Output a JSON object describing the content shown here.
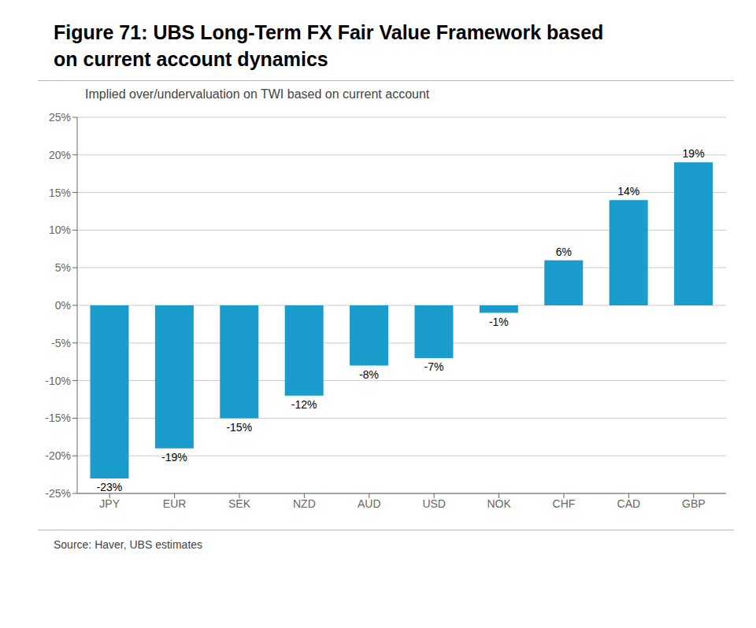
{
  "chart_data": {
    "type": "bar",
    "title": [
      "Figure 71: UBS Long-Term FX Fair Value Framework based",
      "on current account dynamics"
    ],
    "subtitle": "Implied over/undervaluation on TWI based on current account",
    "annotations": [
      "Source: Haver, UBS estimates"
    ],
    "categories": [
      "JPY",
      "EUR",
      "SEK",
      "NZD",
      "AUD",
      "USD",
      "NOK",
      "CHF",
      "CAD",
      "GBP"
    ],
    "values": [
      -23,
      -19,
      -15,
      -12,
      -8,
      -7,
      -1,
      6,
      14,
      19
    ],
    "value_labels": [
      "-23%",
      "-19%",
      "-15%",
      "-12%",
      "-8%",
      "-7%",
      "-1%",
      "6%",
      "14%",
      "19%"
    ],
    "data_labels": true,
    "color": "#1a9dcc",
    "ylim": [
      -25,
      25
    ],
    "yticks": [
      {
        "value": -25,
        "label": "-25%"
      },
      {
        "value": -20,
        "label": "-20%"
      },
      {
        "value": -15,
        "label": "-15%"
      },
      {
        "value": -10,
        "label": "-10%"
      },
      {
        "value": -5,
        "label": "-5%"
      },
      {
        "value": 0,
        "label": "0%"
      },
      {
        "value": 5,
        "label": "5%"
      },
      {
        "value": 10,
        "label": "10%"
      },
      {
        "value": 15,
        "label": "15%"
      },
      {
        "value": 20,
        "label": "20%"
      },
      {
        "value": 25,
        "label": "25%"
      }
    ],
    "grid": true
  }
}
